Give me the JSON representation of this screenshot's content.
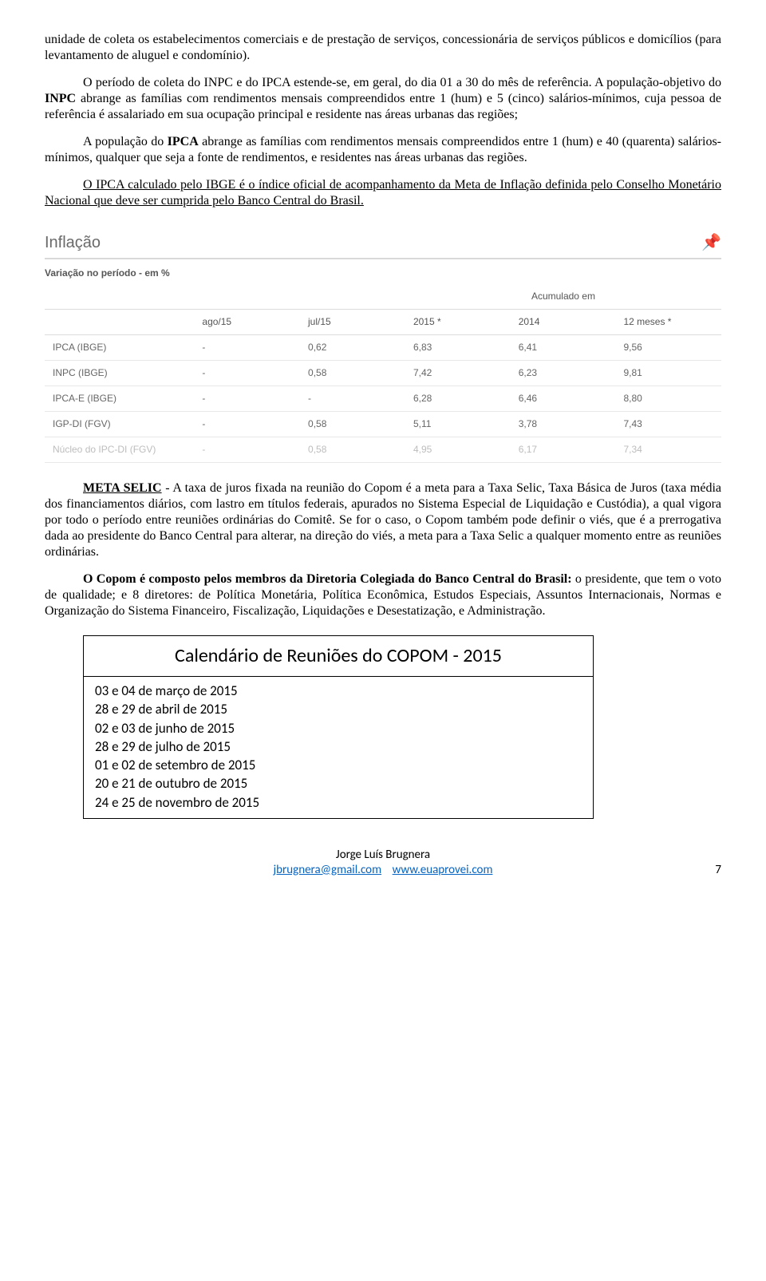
{
  "paragraphs": {
    "p1": "unidade de coleta os estabelecimentos comerciais e de prestação de serviços, concessionária de serviços públicos e domicílios (para levantamento de aluguel e condomínio).",
    "p2_a": "O período de coleta do INPC e do IPCA estende-se, em geral, do dia 01 a 30 do mês de referência. A população-objetivo do ",
    "p2_b": "INPC",
    "p2_c": " abrange as famílias com rendimentos mensais compreendidos entre 1 (hum) e 5 (cinco) salários-mínimos, cuja pessoa de referência é assalariado em sua ocupação principal e residente nas áreas urbanas das regiões;",
    "p3_a": "A população do ",
    "p3_b": "IPCA",
    "p3_c": " abrange as famílias com rendimentos mensais compreendidos entre 1 (hum) e 40 (quarenta) salários-mínimos, qualquer que seja a fonte de rendimentos, e residentes nas áreas urbanas das regiões.",
    "p4": "O IPCA calculado pelo IBGE é o índice oficial de acompanhamento da Meta de Inflação definida pelo Conselho Monetário Nacional que deve ser cumprida pelo Banco Central do Brasil.",
    "p5_a": "META SELIC",
    "p5_b": " - A taxa de juros fixada na reunião do Copom é a meta para a Taxa Selic, Taxa Básica de Juros (taxa média dos financiamentos diários, com lastro em títulos federais, apurados no Sistema Especial de Liquidação e Custódia), a qual vigora por todo o período entre reuniões ordinárias do Comitê.  Se for o caso, o Copom também pode definir o viés, que é a prerrogativa dada ao presidente do Banco Central para alterar, na direção do viés, a meta para a Taxa Selic a qualquer momento entre as reuniões ordinárias.",
    "p6_a": "O Copom é composto pelos membros da Diretoria Colegiada do Banco Central do Brasil:",
    "p6_b": " o presidente, que tem o voto de qualidade; e 8 diretores: de Política Monetária, Política Econômica, Estudos Especiais, Assuntos Internacionais, Normas e Organização do Sistema Financeiro, Fiscalização, Liquidações e Desestatização, e Administração."
  },
  "inflation": {
    "title": "Inflação",
    "subtitle": "Variação no período - em %",
    "group_header": "Acumulado em",
    "cols": {
      "c1": "ago/15",
      "c2": "jul/15",
      "c3": "2015 *",
      "c4": "2014",
      "c5": "12 meses *"
    },
    "rows": [
      {
        "name": "IPCA (IBGE)",
        "c1": "-",
        "c2": "0,62",
        "c3": "6,83",
        "c4": "6,41",
        "c5": "9,56"
      },
      {
        "name": "INPC (IBGE)",
        "c1": "-",
        "c2": "0,58",
        "c3": "7,42",
        "c4": "6,23",
        "c5": "9,81"
      },
      {
        "name": "IPCA-E (IBGE)",
        "c1": "-",
        "c2": "-",
        "c3": "6,28",
        "c4": "6,46",
        "c5": "8,80"
      },
      {
        "name": "IGP-DI (FGV)",
        "c1": "-",
        "c2": "0,58",
        "c3": "5,11",
        "c4": "3,78",
        "c5": "7,43"
      },
      {
        "name": "Núcleo do IPC-DI (FGV)",
        "c1": "-",
        "c2": "0,58",
        "c3": "4,95",
        "c4": "6,17",
        "c5": "7,34"
      }
    ],
    "colors": {
      "title": "#6a6a6a",
      "text": "#666666",
      "border": "#e8e8e8",
      "pin": "#d49a2a"
    }
  },
  "copom": {
    "title": "Calendário de Reuniões do COPOM - 2015",
    "items": [
      "03 e 04 de março de 2015",
      "28 e 29 de abril de 2015",
      "02 e 03 de junho de 2015",
      "28 e 29 de julho de 2015",
      "01 e 02 de setembro de 2015",
      "20 e 21 de outubro de 2015",
      "24 e 25 de novembro de 2015"
    ]
  },
  "footer": {
    "author": "Jorge Luís Brugnera",
    "email": "jbrugnera@gmail.com",
    "site": "www.euaprovei.com",
    "page": "7"
  }
}
